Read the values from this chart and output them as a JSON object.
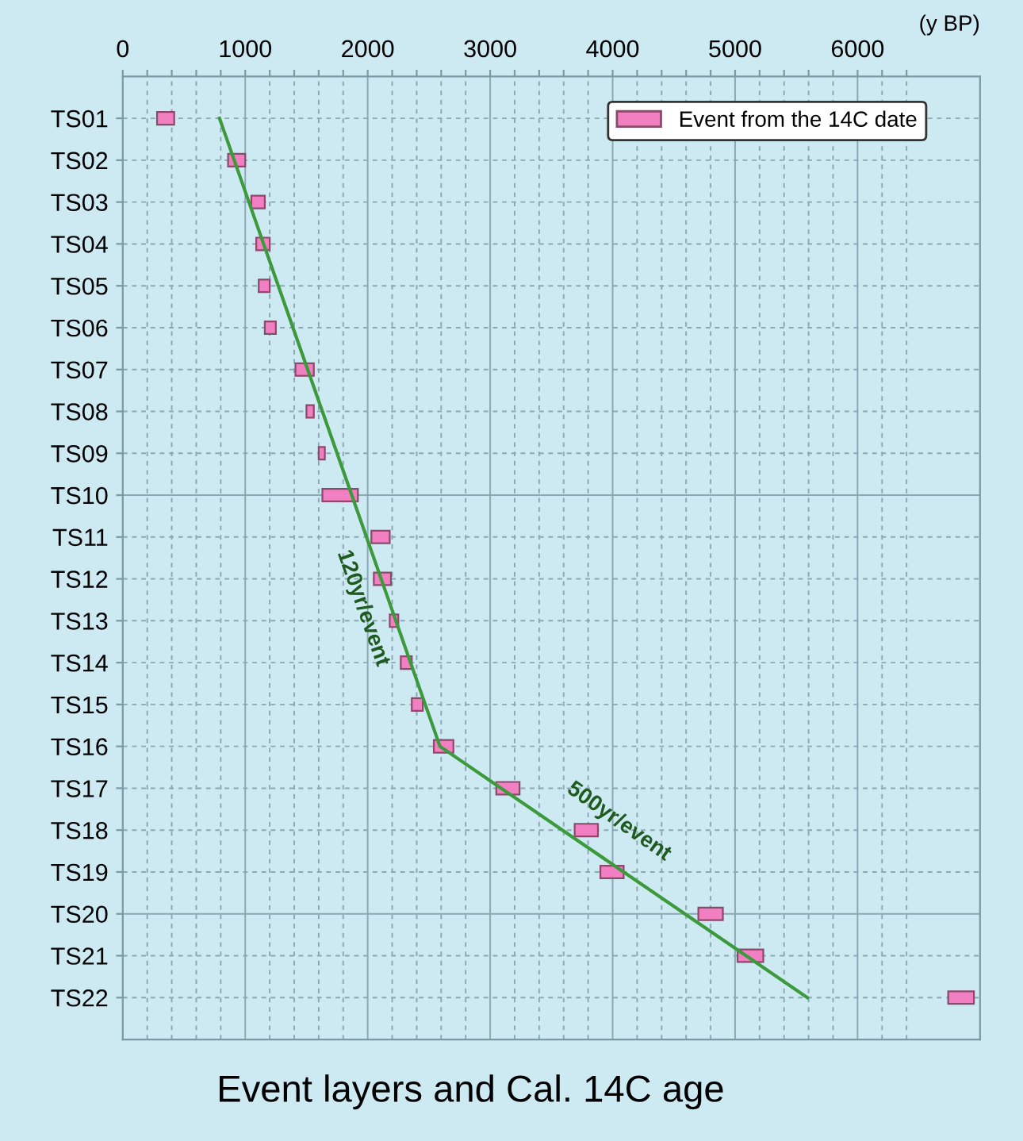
{
  "chart_data": {
    "type": "bar",
    "orientation": "horizontal",
    "title": "Event layers and Cal. 14C age",
    "xlabel": "(y BP)",
    "categories": [
      "TS01",
      "TS02",
      "TS03",
      "TS04",
      "TS05",
      "TS06",
      "TS07",
      "TS08",
      "TS09",
      "TS10",
      "TS11",
      "TS12",
      "TS13",
      "TS14",
      "TS15",
      "TS16",
      "TS17",
      "TS18",
      "TS19",
      "TS20",
      "TS21",
      "TS22"
    ],
    "series": [
      {
        "name": "Event from the 14C date",
        "color": "#f27fc2",
        "base": [
          280,
          860,
          1050,
          1090,
          1110,
          1160,
          1410,
          1500,
          1600,
          1630,
          2030,
          2050,
          2180,
          2270,
          2360,
          2540,
          3050,
          3690,
          3900,
          4700,
          5020,
          6740
        ],
        "values": [
          140,
          140,
          110,
          110,
          90,
          90,
          150,
          60,
          50,
          290,
          150,
          140,
          70,
          90,
          90,
          160,
          190,
          190,
          190,
          200,
          210,
          210
        ]
      },
      {
        "type": "line",
        "color": "#3c9a3c",
        "values": [
          790,
          910,
          1030,
          1150,
          1270,
          1390,
          1510,
          1630,
          1750,
          1870,
          1990,
          2110,
          2230,
          2350,
          2470,
          2590,
          3090,
          3590,
          4090,
          4590,
          5090,
          5590
        ]
      }
    ],
    "xlim": [
      0,
      7000
    ],
    "xticks": [
      0,
      {
        "value": 200,
        "label": null
      },
      {
        "value": 400,
        "label": null
      },
      {
        "value": 600,
        "label": null
      },
      {
        "value": 800,
        "label": null
      },
      1000,
      {
        "value": 1200,
        "label": null
      },
      {
        "value": 1400,
        "label": null
      },
      {
        "value": 1600,
        "label": null
      },
      {
        "value": 1800,
        "label": null
      },
      2000,
      {
        "value": 2200,
        "label": null
      },
      {
        "value": 2400,
        "label": null
      },
      {
        "value": 2600,
        "label": null
      },
      {
        "value": 2800,
        "label": null
      },
      3000,
      {
        "value": 3200,
        "label": null
      },
      {
        "value": 3400,
        "label": null
      },
      {
        "value": 3600,
        "label": null
      },
      {
        "value": 3800,
        "label": null
      },
      4000,
      {
        "value": 4200,
        "label": null
      },
      {
        "value": 4400,
        "label": null
      },
      {
        "value": 4600,
        "label": null
      },
      {
        "value": 4800,
        "label": null
      },
      5000,
      {
        "value": 5200,
        "label": null
      },
      {
        "value": 5400,
        "label": null
      },
      {
        "value": 5600,
        "label": null
      },
      {
        "value": 5800,
        "label": null
      },
      6000,
      {
        "value": 6200,
        "label": null
      },
      {
        "value": 6400,
        "label": null
      }
    ],
    "annotations": [
      "120yr/event",
      "500yr/event"
    ],
    "grid": true,
    "legend": "top right"
  }
}
